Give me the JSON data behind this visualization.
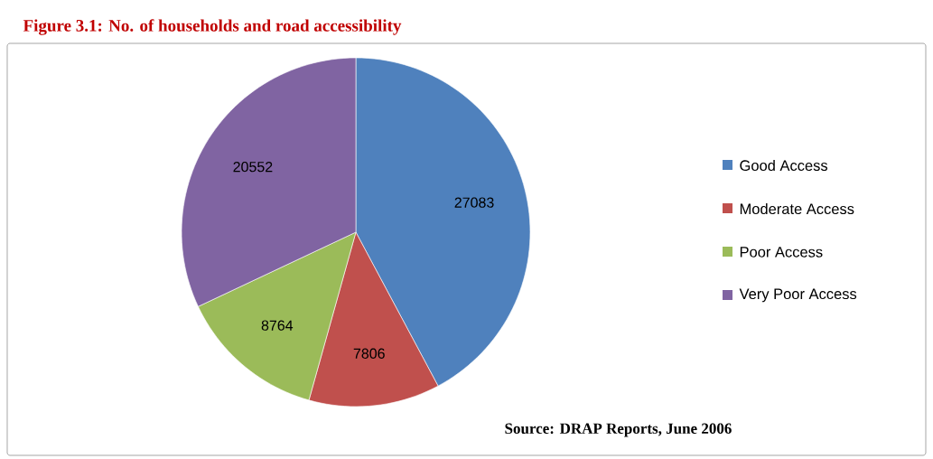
{
  "chart_data": {
    "type": "pie",
    "title": "Figure 3.1: No. of households and road accessibility",
    "categories": [
      "Good Access",
      "Moderate Access",
      "Poor Access",
      "Very Poor Access"
    ],
    "values": [
      27083,
      7806,
      8764,
      20552
    ],
    "colors": [
      "#4f81bd",
      "#c0504d",
      "#9bbb59",
      "#8064a2"
    ],
    "data_labels": true,
    "legend": "right",
    "annotations": [
      "Source: DRAP Reports, June 2006"
    ]
  }
}
